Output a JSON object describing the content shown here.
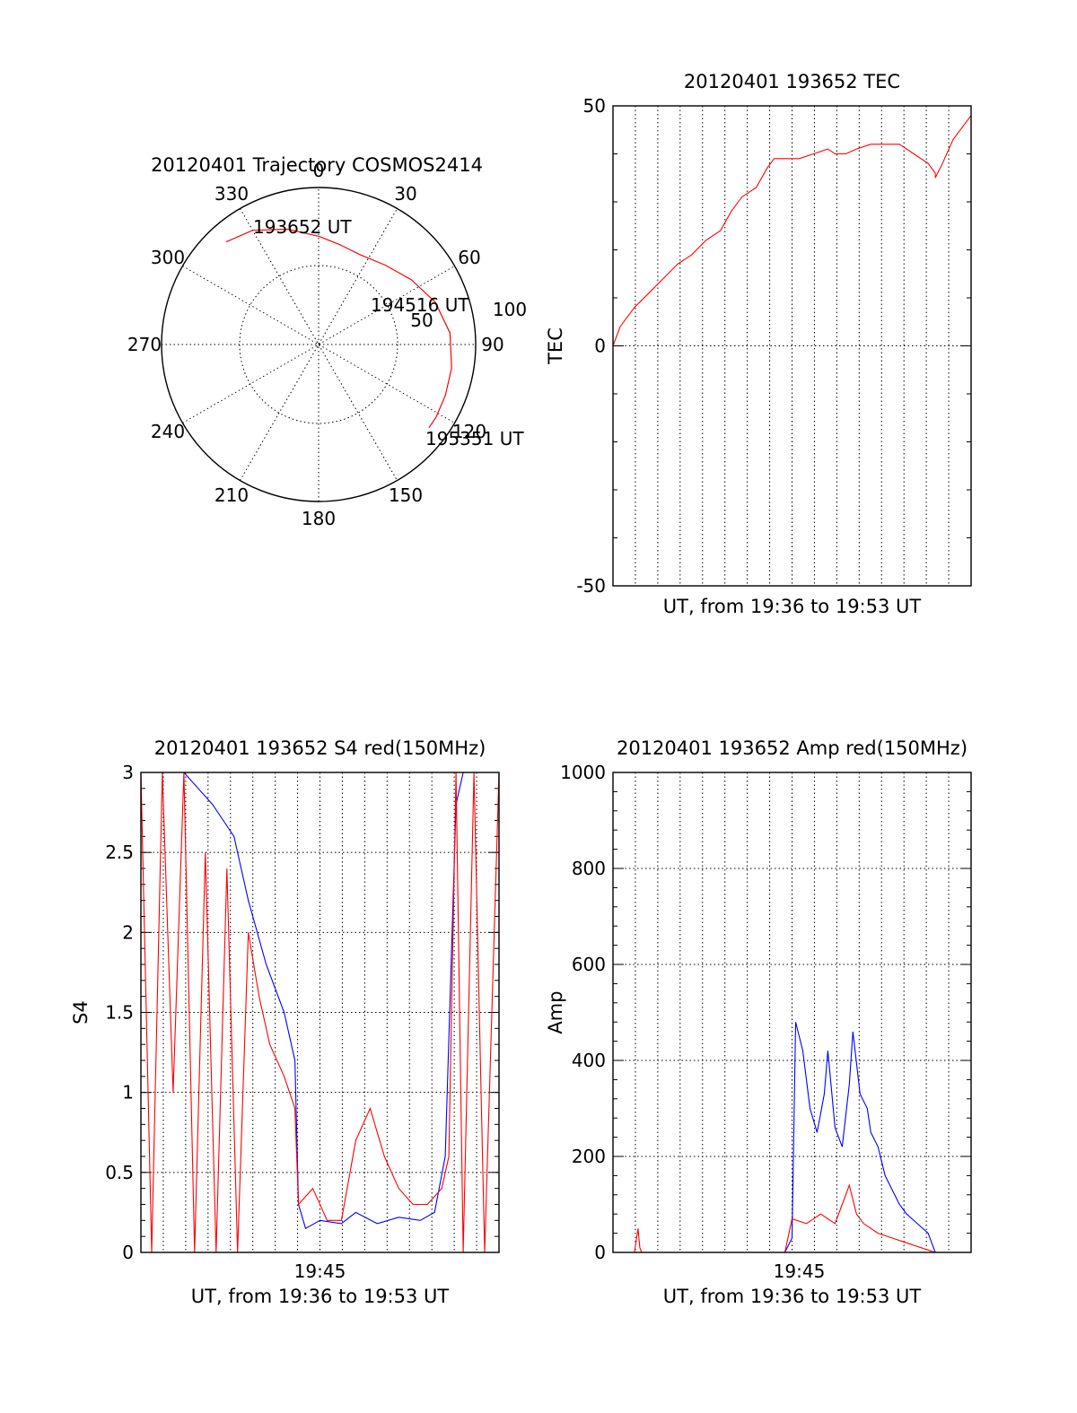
{
  "chart_data": [
    {
      "id": "trajectory",
      "type": "polar",
      "title": "20120401 Trajectory COSMOS2414",
      "angle_labels": [
        "0",
        "30",
        "60",
        "90",
        "120",
        "150",
        "180",
        "210",
        "240",
        "270",
        "300",
        "330"
      ],
      "radius_labels": [
        "50",
        "100"
      ],
      "rlim": [
        0,
        100
      ],
      "annotations": [
        {
          "text": "193652 UT",
          "azimuth": 330,
          "radius": 87
        },
        {
          "text": "194516 UT",
          "azimuth": 60,
          "radius": 58
        },
        {
          "text": "195351 UT",
          "azimuth": 127,
          "radius": 86
        }
      ],
      "track": {
        "color": "#ff0000",
        "points": [
          [
            -42,
            88
          ],
          [
            -30,
            84
          ],
          [
            -15,
            76
          ],
          [
            0,
            69
          ],
          [
            12,
            65
          ],
          [
            25,
            63
          ],
          [
            40,
            66
          ],
          [
            55,
            72
          ],
          [
            70,
            79
          ],
          [
            85,
            84
          ],
          [
            100,
            86
          ],
          [
            112,
            87
          ],
          [
            122,
            88
          ],
          [
            127,
            88
          ]
        ]
      },
      "grid": true
    },
    {
      "id": "tec",
      "type": "line",
      "title": "20120401 193652 TEC",
      "xlabel": "UT, from 19:36 to 19:53 UT",
      "ylabel": "TEC",
      "xlim": [
        0,
        1
      ],
      "ylim": [
        -50,
        50
      ],
      "yticks": [
        "-50",
        "0",
        "50"
      ],
      "xticklabels": [],
      "grid": true,
      "series": [
        {
          "color": "#ff0000",
          "points": [
            [
              0.0,
              0
            ],
            [
              0.02,
              4
            ],
            [
              0.06,
              8
            ],
            [
              0.1,
              11
            ],
            [
              0.14,
              14
            ],
            [
              0.18,
              17
            ],
            [
              0.22,
              19
            ],
            [
              0.26,
              22
            ],
            [
              0.3,
              24
            ],
            [
              0.33,
              28
            ],
            [
              0.36,
              31
            ],
            [
              0.4,
              33
            ],
            [
              0.43,
              37
            ],
            [
              0.45,
              39
            ],
            [
              0.48,
              39
            ],
            [
              0.52,
              39
            ],
            [
              0.56,
              40
            ],
            [
              0.6,
              41
            ],
            [
              0.62,
              40
            ],
            [
              0.65,
              40
            ],
            [
              0.68,
              41
            ],
            [
              0.72,
              42
            ],
            [
              0.76,
              42
            ],
            [
              0.8,
              42
            ],
            [
              0.84,
              40
            ],
            [
              0.88,
              38
            ],
            [
              0.9,
              36
            ],
            [
              0.9,
              35
            ],
            [
              0.92,
              38
            ],
            [
              0.95,
              43
            ],
            [
              0.98,
              46
            ],
            [
              1.0,
              48
            ]
          ]
        }
      ]
    },
    {
      "id": "s4",
      "type": "line",
      "title": "20120401 193652 S4 red(150MHz)",
      "xlabel": "UT, from 19:36 to 19:53 UT",
      "ylabel": "S4",
      "xlim": [
        0,
        1
      ],
      "ylim": [
        0,
        3
      ],
      "yticks": [
        "0",
        "0.5",
        "1",
        "1.5",
        "2",
        "2.5",
        "3"
      ],
      "xticklabels": [
        {
          "label": "19:45",
          "x": 0.5
        }
      ],
      "grid": true,
      "series": [
        {
          "name": "",
          "color": "#0000ff",
          "points": [
            [
              0.0,
              3.0
            ],
            [
              0.05,
              3.0
            ],
            [
              0.12,
              3.0
            ],
            [
              0.2,
              2.8
            ],
            [
              0.26,
              2.6
            ],
            [
              0.3,
              2.2
            ],
            [
              0.35,
              1.8
            ],
            [
              0.4,
              1.5
            ],
            [
              0.43,
              1.2
            ],
            [
              0.44,
              0.3
            ],
            [
              0.46,
              0.15
            ],
            [
              0.5,
              0.2
            ],
            [
              0.56,
              0.18
            ],
            [
              0.6,
              0.25
            ],
            [
              0.66,
              0.18
            ],
            [
              0.72,
              0.22
            ],
            [
              0.78,
              0.2
            ],
            [
              0.82,
              0.25
            ],
            [
              0.85,
              0.6
            ],
            [
              0.88,
              2.8
            ],
            [
              0.9,
              3.0
            ],
            [
              1.0,
              3.0
            ]
          ]
        },
        {
          "name": "",
          "color": "#ff0000",
          "points": [
            [
              0.0,
              3.0
            ],
            [
              0.03,
              0.0
            ],
            [
              0.06,
              3.0
            ],
            [
              0.09,
              1.0
            ],
            [
              0.12,
              3.0
            ],
            [
              0.15,
              0.0
            ],
            [
              0.18,
              2.5
            ],
            [
              0.21,
              0.0
            ],
            [
              0.24,
              2.4
            ],
            [
              0.27,
              0.0
            ],
            [
              0.3,
              2.0
            ],
            [
              0.33,
              1.6
            ],
            [
              0.36,
              1.3
            ],
            [
              0.4,
              1.1
            ],
            [
              0.43,
              0.9
            ],
            [
              0.44,
              0.3
            ],
            [
              0.48,
              0.4
            ],
            [
              0.52,
              0.2
            ],
            [
              0.56,
              0.2
            ],
            [
              0.6,
              0.7
            ],
            [
              0.64,
              0.9
            ],
            [
              0.68,
              0.6
            ],
            [
              0.72,
              0.4
            ],
            [
              0.76,
              0.3
            ],
            [
              0.8,
              0.3
            ],
            [
              0.84,
              0.4
            ],
            [
              0.86,
              0.6
            ],
            [
              0.88,
              3.0
            ],
            [
              0.9,
              0.0
            ],
            [
              0.93,
              3.0
            ],
            [
              0.96,
              0.0
            ],
            [
              1.0,
              3.0
            ]
          ]
        }
      ]
    },
    {
      "id": "amp",
      "type": "line",
      "title": "20120401 193652 Amp red(150MHz)",
      "xlabel": "UT, from 19:36 to 19:53 UT",
      "ylabel": "Amp",
      "xlim": [
        0,
        1
      ],
      "ylim": [
        0,
        1000
      ],
      "yticks": [
        "0",
        "200",
        "400",
        "600",
        "800",
        "1000"
      ],
      "xticklabels": [
        {
          "label": "19:45",
          "x": 0.52
        }
      ],
      "grid": true,
      "series": [
        {
          "name": "",
          "color": "#0000ff",
          "points": [
            [
              0.0,
              0
            ],
            [
              0.48,
              0
            ],
            [
              0.5,
              30
            ],
            [
              0.51,
              480
            ],
            [
              0.53,
              420
            ],
            [
              0.55,
              300
            ],
            [
              0.57,
              250
            ],
            [
              0.59,
              330
            ],
            [
              0.6,
              420
            ],
            [
              0.62,
              260
            ],
            [
              0.64,
              220
            ],
            [
              0.66,
              350
            ],
            [
              0.67,
              460
            ],
            [
              0.69,
              330
            ],
            [
              0.71,
              300
            ],
            [
              0.72,
              250
            ],
            [
              0.74,
              220
            ],
            [
              0.76,
              160
            ],
            [
              0.78,
              130
            ],
            [
              0.8,
              100
            ],
            [
              0.82,
              80
            ],
            [
              0.85,
              60
            ],
            [
              0.88,
              40
            ],
            [
              0.9,
              0
            ],
            [
              1.0,
              0
            ]
          ]
        },
        {
          "name": "",
          "color": "#ff0000",
          "points": [
            [
              0.0,
              0
            ],
            [
              0.06,
              0
            ],
            [
              0.07,
              50
            ],
            [
              0.075,
              10
            ],
            [
              0.08,
              0
            ],
            [
              0.48,
              0
            ],
            [
              0.5,
              70
            ],
            [
              0.54,
              60
            ],
            [
              0.58,
              80
            ],
            [
              0.62,
              60
            ],
            [
              0.64,
              100
            ],
            [
              0.66,
              140
            ],
            [
              0.68,
              80
            ],
            [
              0.7,
              60
            ],
            [
              0.74,
              40
            ],
            [
              0.78,
              30
            ],
            [
              0.82,
              20
            ],
            [
              0.86,
              10
            ],
            [
              0.9,
              0
            ],
            [
              1.0,
              0
            ]
          ]
        }
      ]
    }
  ]
}
